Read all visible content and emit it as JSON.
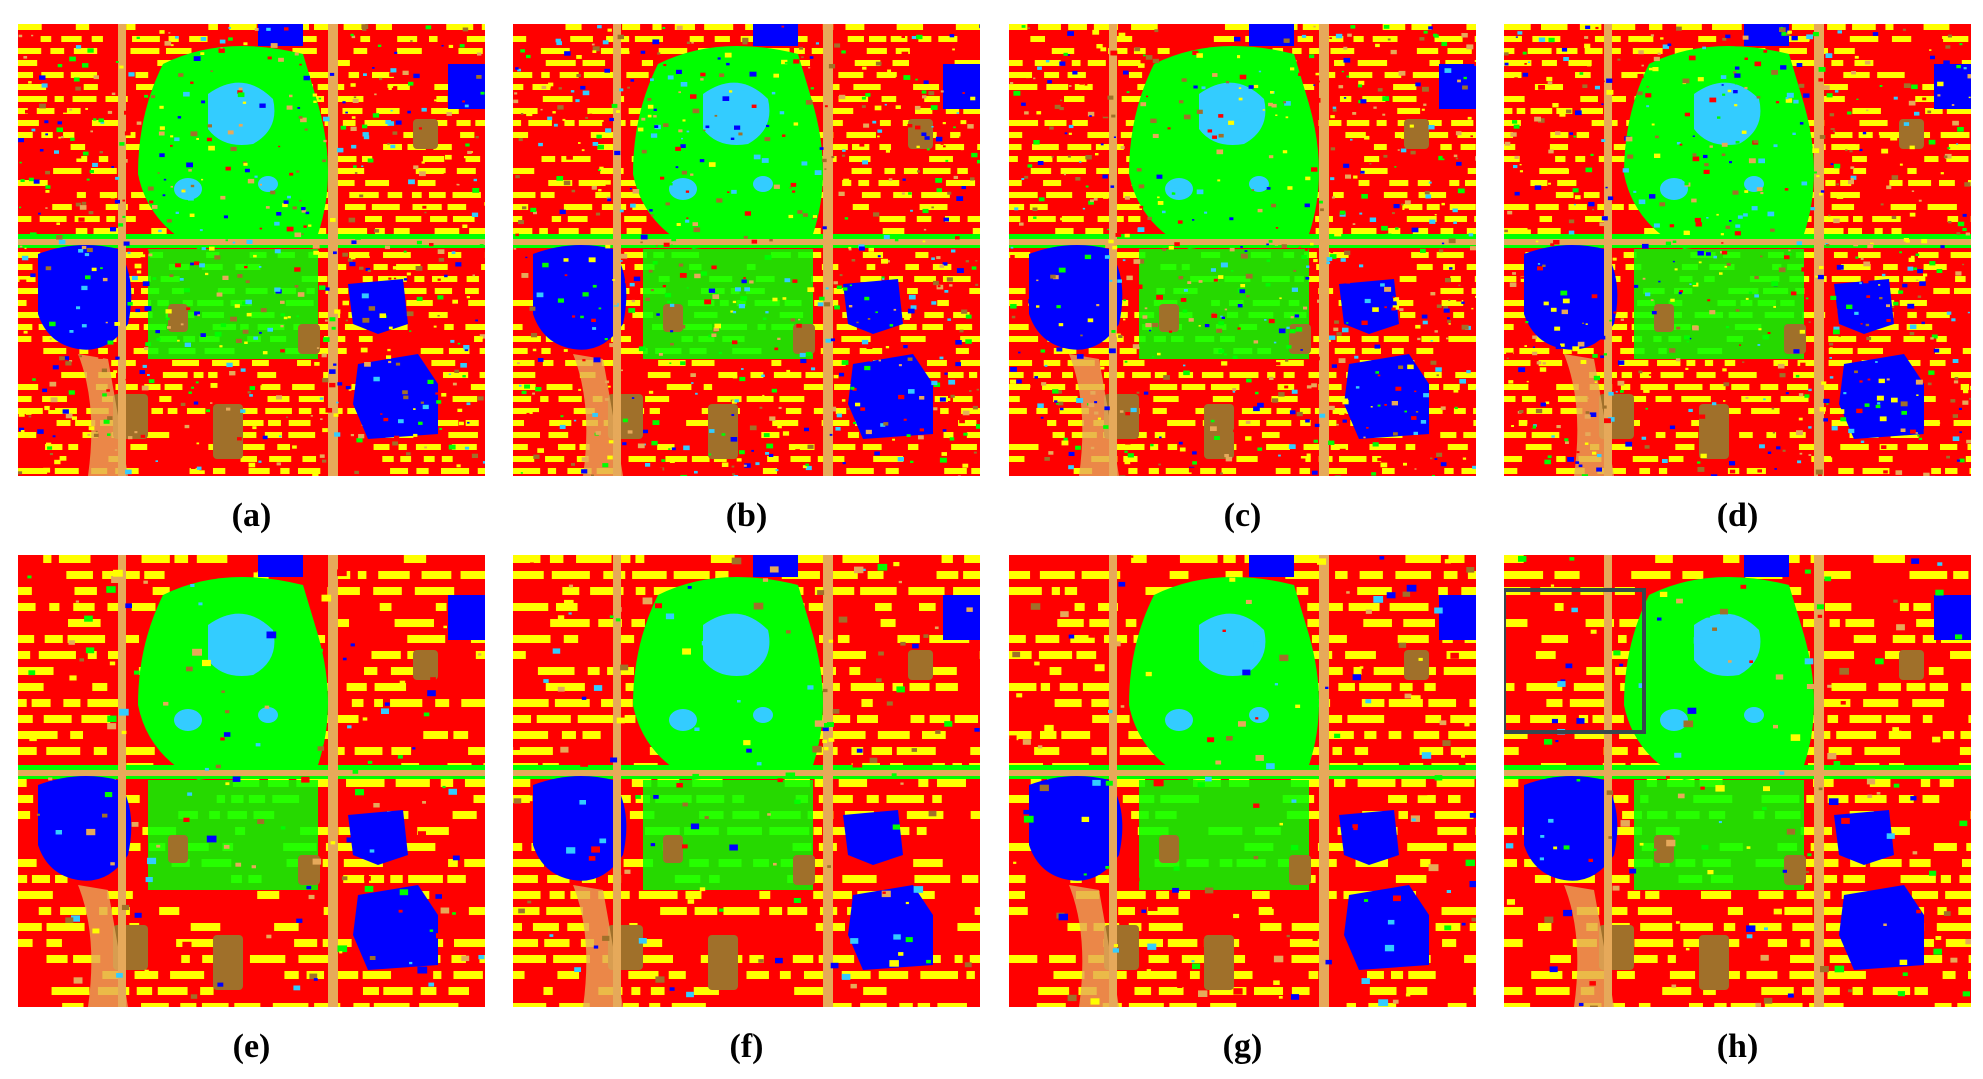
{
  "figure": {
    "panels": [
      {
        "label": "(a)",
        "variant": "noisy",
        "highlight_box": false
      },
      {
        "label": "(b)",
        "variant": "noisy",
        "highlight_box": false
      },
      {
        "label": "(c)",
        "variant": "noisy",
        "highlight_box": false
      },
      {
        "label": "(d)",
        "variant": "noisy",
        "highlight_box": false
      },
      {
        "label": "(e)",
        "variant": "smooth",
        "highlight_box": false
      },
      {
        "label": "(f)",
        "variant": "smooth",
        "highlight_box": false
      },
      {
        "label": "(g)",
        "variant": "smooth",
        "highlight_box": false
      },
      {
        "label": "(h)",
        "variant": "smooth",
        "highlight_box": true
      }
    ],
    "class_colors": {
      "building": "#ff0000",
      "bareland": "#ffff00",
      "vegetation": "#00ff00",
      "water": "#33ccff",
      "industrial": "#0000ff",
      "road": "#e6a95a",
      "soil": "#a0702a"
    },
    "box_color": "#37474f"
  }
}
